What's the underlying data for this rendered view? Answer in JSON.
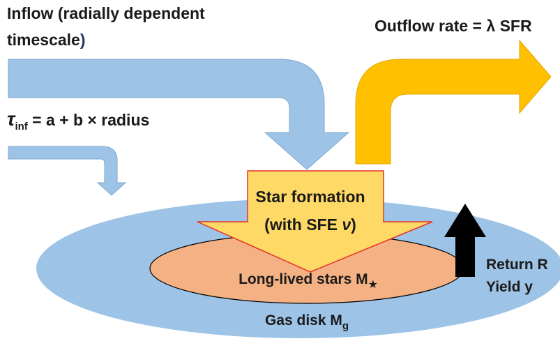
{
  "inflow": {
    "line1": "Inflow (radially dependent",
    "line2": "timescale",
    "line2_end": ")"
  },
  "outflow": {
    "text": "Outflow rate = ",
    "lambda": "λ",
    "rest": " SFR"
  },
  "timescale": {
    "symbol": "τ",
    "sub": "inf",
    "rest": " = a + b × radius"
  },
  "star_formation": {
    "line1": "Star formation",
    "line2_start": "(with SFE ",
    "nu": "ν",
    "line2_end": ")"
  },
  "stars": {
    "text": "Long-lived stars M",
    "sub": "★"
  },
  "return": {
    "line1": "Return R",
    "line2": "Yield y"
  },
  "gas": {
    "text": "Gas disk M",
    "sub": "g"
  }
}
